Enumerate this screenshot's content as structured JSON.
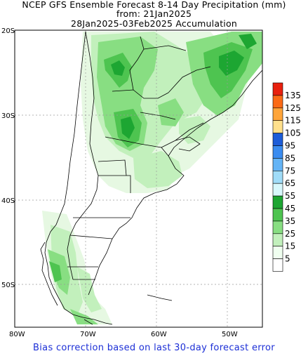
{
  "title": {
    "line1": "NCEP GFS Ensemble Forecast 8-14 Day Precipitation (mm)",
    "line2": "from: 21Jan2025",
    "line3": "28Jan2025-03Feb2025 Accumulation"
  },
  "axes": {
    "lat_labels": [
      "20S",
      "30S",
      "40S",
      "50S"
    ],
    "lon_labels": [
      "80W",
      "70W",
      "60W",
      "50W"
    ]
  },
  "colorbar": {
    "labels": [
      "135",
      "125",
      "115",
      "105",
      "95",
      "85",
      "75",
      "65",
      "55",
      "45",
      "35",
      "25",
      "15",
      "5"
    ],
    "colors": [
      "#e8200e",
      "#fb6a16",
      "#ffa53a",
      "#ffe08c",
      "#1c5cd8",
      "#3a8cf0",
      "#64b4f6",
      "#a0dcf8",
      "#d8f8fc",
      "#1da632",
      "#4ec450",
      "#88de82",
      "#c2f0bc",
      "#f0fff0",
      "#ffffff"
    ]
  },
  "footer": "Bias correction based on last 30-day forecast error"
}
